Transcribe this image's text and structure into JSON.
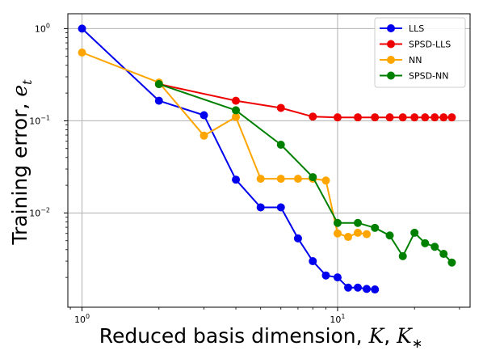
{
  "chart_data": {
    "type": "line",
    "xscale": "log",
    "yscale": "log",
    "xlim": [
      0.88,
      33
    ],
    "ylim": [
      0.00095,
      1.45
    ],
    "grid": "major",
    "legend_position": "top-right",
    "xlabel": "Reduced basis dimension, ",
    "xlabel_math": [
      {
        "main": "K",
        "sub": ""
      },
      {
        "main": "K",
        "sub": "∗"
      }
    ],
    "ylabel": "Training error, ",
    "ylabel_math": {
      "main": "e",
      "sub": "t"
    },
    "xticks": [
      {
        "value": 1,
        "base": "10",
        "exp": "0"
      },
      {
        "value": 10,
        "base": "10",
        "exp": "1"
      }
    ],
    "yticks": [
      {
        "value": 0.01,
        "base": "10",
        "exp": "−2"
      },
      {
        "value": 0.1,
        "base": "10",
        "exp": "−1"
      },
      {
        "value": 1,
        "base": "10",
        "exp": "0"
      }
    ],
    "series": [
      {
        "name": "LLS",
        "color": "#0000ee",
        "x": [
          1,
          2,
          3,
          4,
          5,
          6,
          7,
          8,
          9,
          10,
          11,
          12,
          13,
          14
        ],
        "y": [
          1.0,
          0.165,
          0.115,
          0.023,
          0.0115,
          0.0115,
          0.0053,
          0.003,
          0.0021,
          0.002,
          0.00155,
          0.00155,
          0.0015,
          0.00148
        ]
      },
      {
        "name": "SPSD-LLS",
        "color": "#ee0000",
        "x": [
          2,
          4,
          6,
          8,
          10,
          12,
          14,
          16,
          18,
          20,
          22,
          24,
          26,
          28
        ],
        "y": [
          0.25,
          0.165,
          0.138,
          0.111,
          0.109,
          0.109,
          0.109,
          0.109,
          0.109,
          0.109,
          0.109,
          0.109,
          0.109,
          0.109
        ]
      },
      {
        "name": "NN",
        "color": "#ffa500",
        "x": [
          1,
          2,
          3,
          4,
          5,
          6,
          7,
          8,
          9,
          10,
          11,
          12,
          13
        ],
        "y": [
          0.55,
          0.26,
          0.069,
          0.11,
          0.0235,
          0.0235,
          0.0235,
          0.0235,
          0.0225,
          0.006,
          0.0055,
          0.0061,
          0.0059
        ]
      },
      {
        "name": "SPSD-NN",
        "color": "#008000",
        "x": [
          2,
          4,
          6,
          8,
          10,
          12,
          14,
          16,
          18,
          20,
          22,
          24,
          26,
          28
        ],
        "y": [
          0.25,
          0.13,
          0.055,
          0.0245,
          0.0078,
          0.0078,
          0.0069,
          0.0057,
          0.0034,
          0.0061,
          0.0047,
          0.0043,
          0.0036,
          0.0029
        ]
      }
    ]
  }
}
